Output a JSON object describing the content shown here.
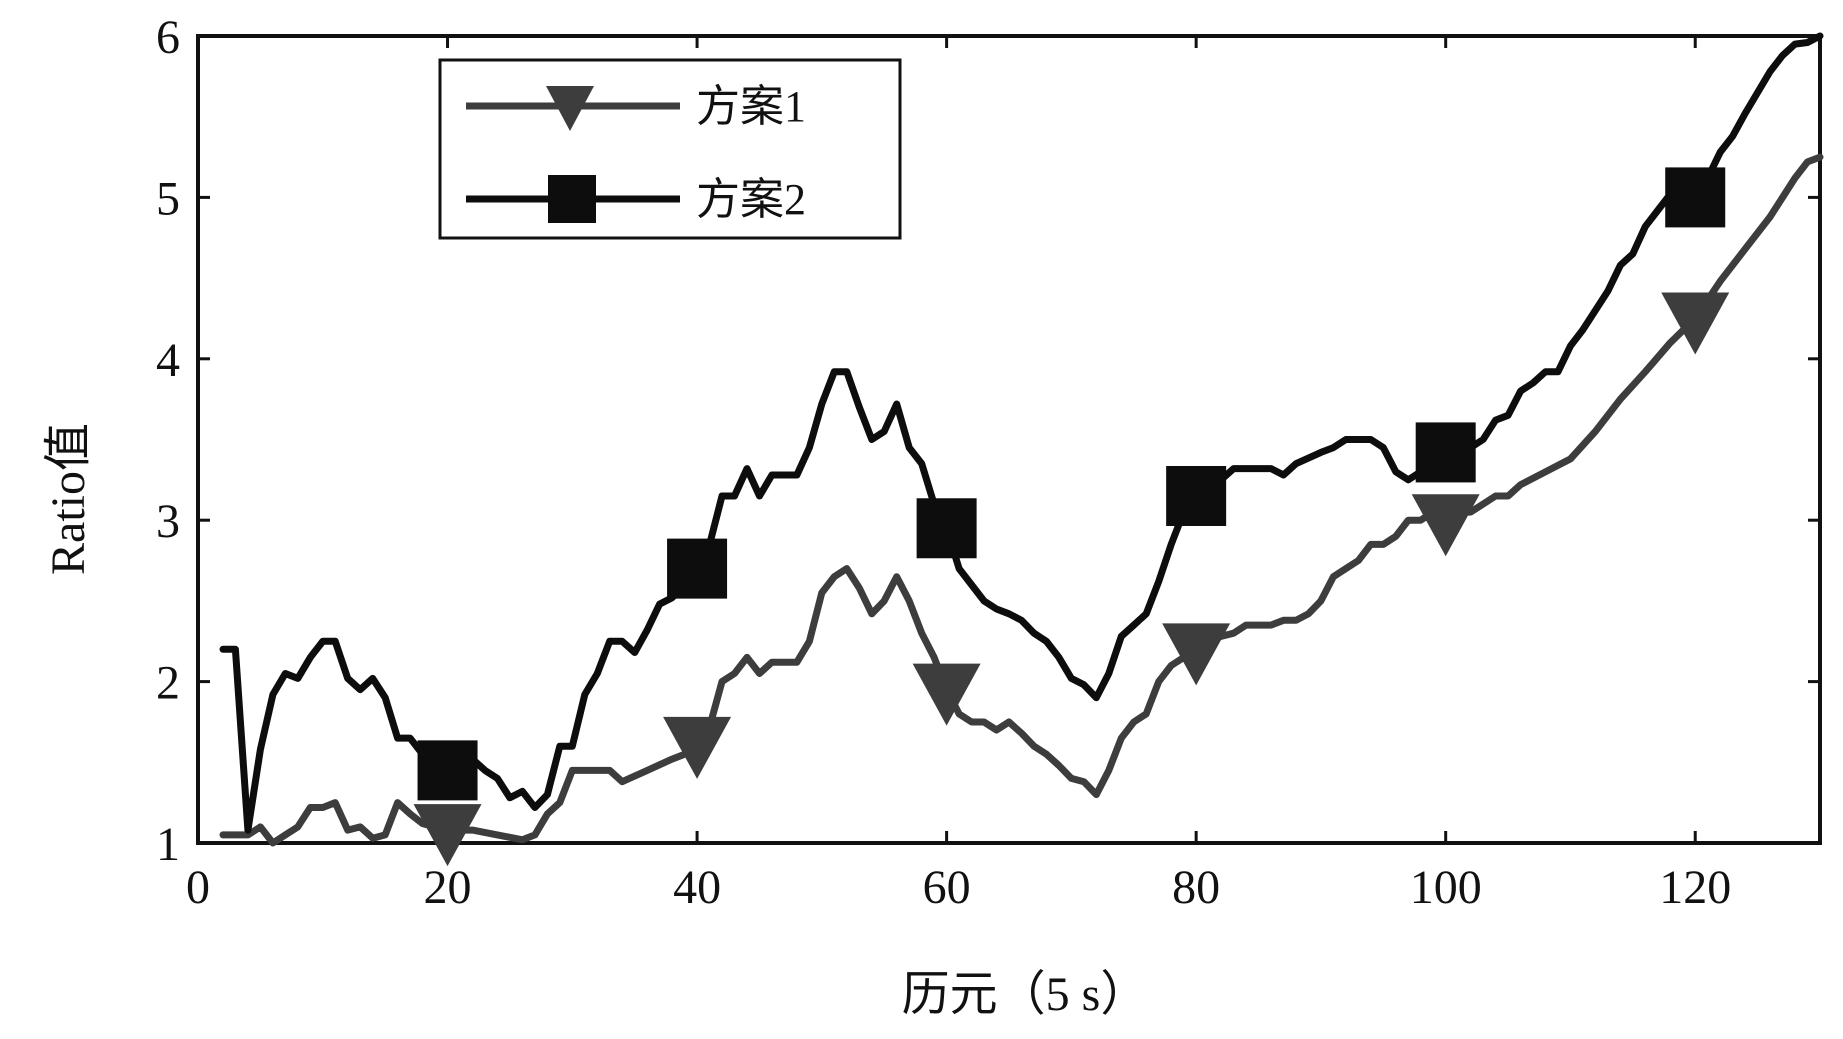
{
  "chart_data": {
    "type": "line",
    "xlabel": "历元（5 s）",
    "ylabel": "Ratio值",
    "xlim": [
      0,
      130
    ],
    "ylim": [
      1,
      6
    ],
    "xticks": [
      0,
      20,
      40,
      60,
      80,
      100,
      120
    ],
    "yticks": [
      1,
      2,
      3,
      4,
      5,
      6
    ],
    "grid": false,
    "legend_position": "top-left",
    "series": [
      {
        "name": "方案1",
        "color": "#3d3d3d",
        "marker": "triangle-down",
        "marker_x": [
          20,
          40,
          60,
          80,
          100,
          120
        ],
        "points": [
          [
            2,
            1.05
          ],
          [
            3,
            1.05
          ],
          [
            4,
            1.05
          ],
          [
            5,
            1.1
          ],
          [
            6,
            1.0
          ],
          [
            7,
            1.05
          ],
          [
            8,
            1.1
          ],
          [
            9,
            1.22
          ],
          [
            10,
            1.22
          ],
          [
            11,
            1.25
          ],
          [
            12,
            1.08
          ],
          [
            13,
            1.1
          ],
          [
            14,
            1.03
          ],
          [
            15,
            1.05
          ],
          [
            16,
            1.25
          ],
          [
            17,
            1.18
          ],
          [
            18,
            1.12
          ],
          [
            19,
            1.1
          ],
          [
            20,
            1.08
          ],
          [
            22,
            1.08
          ],
          [
            24,
            1.05
          ],
          [
            26,
            1.02
          ],
          [
            27,
            1.05
          ],
          [
            28,
            1.18
          ],
          [
            29,
            1.25
          ],
          [
            30,
            1.45
          ],
          [
            31,
            1.45
          ],
          [
            33,
            1.45
          ],
          [
            34,
            1.38
          ],
          [
            36,
            1.45
          ],
          [
            38,
            1.52
          ],
          [
            39,
            1.55
          ],
          [
            40,
            1.62
          ],
          [
            41,
            1.72
          ],
          [
            42,
            2.0
          ],
          [
            43,
            2.05
          ],
          [
            44,
            2.15
          ],
          [
            45,
            2.05
          ],
          [
            46,
            2.12
          ],
          [
            48,
            2.12
          ],
          [
            49,
            2.25
          ],
          [
            50,
            2.55
          ],
          [
            51,
            2.65
          ],
          [
            52,
            2.7
          ],
          [
            53,
            2.58
          ],
          [
            54,
            2.42
          ],
          [
            55,
            2.5
          ],
          [
            56,
            2.65
          ],
          [
            57,
            2.5
          ],
          [
            58,
            2.3
          ],
          [
            59,
            2.15
          ],
          [
            60,
            1.95
          ],
          [
            61,
            1.8
          ],
          [
            62,
            1.75
          ],
          [
            63,
            1.75
          ],
          [
            64,
            1.7
          ],
          [
            65,
            1.75
          ],
          [
            66,
            1.68
          ],
          [
            67,
            1.6
          ],
          [
            68,
            1.55
          ],
          [
            69,
            1.48
          ],
          [
            70,
            1.4
          ],
          [
            71,
            1.38
          ],
          [
            72,
            1.3
          ],
          [
            73,
            1.45
          ],
          [
            74,
            1.65
          ],
          [
            75,
            1.75
          ],
          [
            76,
            1.8
          ],
          [
            77,
            2.0
          ],
          [
            78,
            2.1
          ],
          [
            79,
            2.15
          ],
          [
            80,
            2.2
          ],
          [
            81,
            2.25
          ],
          [
            82,
            2.28
          ],
          [
            83,
            2.3
          ],
          [
            84,
            2.35
          ],
          [
            86,
            2.35
          ],
          [
            87,
            2.38
          ],
          [
            88,
            2.38
          ],
          [
            89,
            2.42
          ],
          [
            90,
            2.5
          ],
          [
            91,
            2.65
          ],
          [
            92,
            2.7
          ],
          [
            93,
            2.75
          ],
          [
            94,
            2.85
          ],
          [
            95,
            2.85
          ],
          [
            96,
            2.9
          ],
          [
            97,
            3.0
          ],
          [
            98,
            3.0
          ],
          [
            99,
            3.05
          ],
          [
            100,
            3.0
          ],
          [
            101,
            3.05
          ],
          [
            102,
            3.05
          ],
          [
            103,
            3.1
          ],
          [
            104,
            3.15
          ],
          [
            105,
            3.15
          ],
          [
            106,
            3.22
          ],
          [
            108,
            3.3
          ],
          [
            110,
            3.38
          ],
          [
            112,
            3.55
          ],
          [
            114,
            3.75
          ],
          [
            116,
            3.92
          ],
          [
            118,
            4.1
          ],
          [
            120,
            4.25
          ],
          [
            122,
            4.48
          ],
          [
            124,
            4.68
          ],
          [
            126,
            4.88
          ],
          [
            128,
            5.12
          ],
          [
            129,
            5.22
          ],
          [
            130,
            5.25
          ]
        ]
      },
      {
        "name": "方案2",
        "color": "#0d0d0d",
        "marker": "square",
        "marker_x": [
          20,
          40,
          60,
          80,
          100,
          120
        ],
        "points": [
          [
            2,
            2.2
          ],
          [
            3,
            2.2
          ],
          [
            4,
            1.08
          ],
          [
            5,
            1.58
          ],
          [
            6,
            1.92
          ],
          [
            7,
            2.05
          ],
          [
            8,
            2.02
          ],
          [
            9,
            2.15
          ],
          [
            10,
            2.25
          ],
          [
            11,
            2.25
          ],
          [
            12,
            2.02
          ],
          [
            13,
            1.95
          ],
          [
            14,
            2.02
          ],
          [
            15,
            1.9
          ],
          [
            16,
            1.65
          ],
          [
            17,
            1.65
          ],
          [
            18,
            1.55
          ],
          [
            19,
            1.48
          ],
          [
            20,
            1.45
          ],
          [
            21,
            1.48
          ],
          [
            22,
            1.52
          ],
          [
            23,
            1.45
          ],
          [
            24,
            1.4
          ],
          [
            25,
            1.28
          ],
          [
            26,
            1.32
          ],
          [
            27,
            1.22
          ],
          [
            28,
            1.3
          ],
          [
            29,
            1.6
          ],
          [
            30,
            1.6
          ],
          [
            31,
            1.92
          ],
          [
            32,
            2.05
          ],
          [
            33,
            2.25
          ],
          [
            34,
            2.25
          ],
          [
            35,
            2.18
          ],
          [
            36,
            2.32
          ],
          [
            37,
            2.48
          ],
          [
            38,
            2.52
          ],
          [
            39,
            2.6
          ],
          [
            40,
            2.7
          ],
          [
            41,
            2.85
          ],
          [
            42,
            3.15
          ],
          [
            43,
            3.15
          ],
          [
            44,
            3.32
          ],
          [
            45,
            3.15
          ],
          [
            46,
            3.28
          ],
          [
            48,
            3.28
          ],
          [
            49,
            3.45
          ],
          [
            50,
            3.72
          ],
          [
            51,
            3.92
          ],
          [
            52,
            3.92
          ],
          [
            53,
            3.7
          ],
          [
            54,
            3.5
          ],
          [
            55,
            3.55
          ],
          [
            56,
            3.72
          ],
          [
            57,
            3.45
          ],
          [
            58,
            3.35
          ],
          [
            59,
            3.1
          ],
          [
            60,
            2.95
          ],
          [
            61,
            2.7
          ],
          [
            62,
            2.6
          ],
          [
            63,
            2.5
          ],
          [
            64,
            2.45
          ],
          [
            65,
            2.42
          ],
          [
            66,
            2.38
          ],
          [
            67,
            2.3
          ],
          [
            68,
            2.25
          ],
          [
            69,
            2.15
          ],
          [
            70,
            2.02
          ],
          [
            71,
            1.98
          ],
          [
            72,
            1.9
          ],
          [
            73,
            2.05
          ],
          [
            74,
            2.28
          ],
          [
            75,
            2.35
          ],
          [
            76,
            2.42
          ],
          [
            77,
            2.62
          ],
          [
            78,
            2.85
          ],
          [
            79,
            3.05
          ],
          [
            80,
            3.15
          ],
          [
            81,
            3.2
          ],
          [
            82,
            3.25
          ],
          [
            83,
            3.32
          ],
          [
            85,
            3.32
          ],
          [
            86,
            3.32
          ],
          [
            87,
            3.28
          ],
          [
            88,
            3.35
          ],
          [
            90,
            3.42
          ],
          [
            91,
            3.45
          ],
          [
            92,
            3.5
          ],
          [
            94,
            3.5
          ],
          [
            95,
            3.45
          ],
          [
            96,
            3.3
          ],
          [
            97,
            3.25
          ],
          [
            98,
            3.3
          ],
          [
            99,
            3.35
          ],
          [
            100,
            3.42
          ],
          [
            101,
            3.42
          ],
          [
            102,
            3.45
          ],
          [
            103,
            3.5
          ],
          [
            104,
            3.62
          ],
          [
            105,
            3.65
          ],
          [
            106,
            3.8
          ],
          [
            107,
            3.85
          ],
          [
            108,
            3.92
          ],
          [
            109,
            3.92
          ],
          [
            110,
            4.08
          ],
          [
            111,
            4.18
          ],
          [
            112,
            4.3
          ],
          [
            113,
            4.42
          ],
          [
            114,
            4.58
          ],
          [
            115,
            4.65
          ],
          [
            116,
            4.82
          ],
          [
            117,
            4.92
          ],
          [
            118,
            5.02
          ],
          [
            119,
            5.05
          ],
          [
            120,
            5.0
          ],
          [
            121,
            5.12
          ],
          [
            122,
            5.28
          ],
          [
            123,
            5.38
          ],
          [
            124,
            5.52
          ],
          [
            125,
            5.65
          ],
          [
            126,
            5.78
          ],
          [
            127,
            5.88
          ],
          [
            128,
            5.95
          ],
          [
            129,
            5.96
          ],
          [
            130,
            6.0
          ]
        ]
      }
    ]
  }
}
